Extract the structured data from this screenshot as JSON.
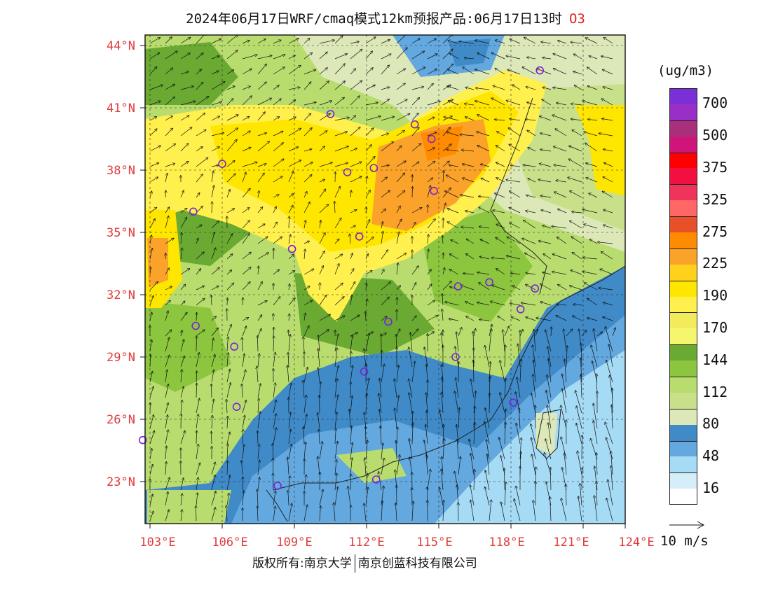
{
  "title": {
    "main": "2024年06月17日WRF/cmaq模式12km预报产品:06月17日13时",
    "pollutant": "O3"
  },
  "axes": {
    "lat_labels": [
      "44°N",
      "41°N",
      "38°N",
      "35°N",
      "32°N",
      "29°N",
      "26°N",
      "23°N"
    ],
    "lon_labels": [
      "103°E",
      "106°E",
      "109°E",
      "112°E",
      "115°E",
      "118°E",
      "121°E",
      "124°E"
    ],
    "label_color": "#e03c3c"
  },
  "legend": {
    "unit": "(ug/m3)",
    "items": [
      {
        "color": "#7b2fd6",
        "label": "700"
      },
      {
        "color": "#9a2fc8",
        "label": ""
      },
      {
        "color": "#a8307a",
        "label": "500"
      },
      {
        "color": "#d0157a",
        "label": ""
      },
      {
        "color": "#ff0000",
        "label": "375"
      },
      {
        "color": "#f21040",
        "label": ""
      },
      {
        "color": "#f0335a",
        "label": "325"
      },
      {
        "color": "#ff6666",
        "label": ""
      },
      {
        "color": "#e8502a",
        "label": "275"
      },
      {
        "color": "#ff8c00",
        "label": ""
      },
      {
        "color": "#fba22b",
        "label": "225"
      },
      {
        "color": "#ffd11a",
        "label": ""
      },
      {
        "color": "#ffe600",
        "label": "190"
      },
      {
        "color": "#fff04d",
        "label": ""
      },
      {
        "color": "#f2ec5c",
        "label": "170"
      },
      {
        "color": "#f5f56e",
        "label": ""
      },
      {
        "color": "#6aaa33",
        "label": "144"
      },
      {
        "color": "#8cc63f",
        "label": ""
      },
      {
        "color": "#b9dc6e",
        "label": "112"
      },
      {
        "color": "#c8e08a",
        "label": ""
      },
      {
        "color": "#dde8b8",
        "label": "80"
      },
      {
        "color": "#3f8ac7",
        "label": ""
      },
      {
        "color": "#63a8df",
        "label": "48"
      },
      {
        "color": "#a6dbf5",
        "label": ""
      },
      {
        "color": "#d6eefa",
        "label": "16"
      },
      {
        "color": "#ffffff",
        "label": ""
      }
    ]
  },
  "wind_vector_label": "10 m/s",
  "copyright": {
    "left": "版权所有:南京大学",
    "right": "南京创蓝科技有限公司"
  },
  "station_markers": [
    "42.8,119.2",
    "40.7,110.5",
    "40.2,114.0",
    "39.5,114.7",
    "38.3,106.0",
    "38.1,112.3",
    "37.9,111.2",
    "37.0,114.8",
    "36.0,104.8",
    "34.8,111.7",
    "34.2,108.9",
    "32.4,115.8",
    "32.6,117.1",
    "32.3,119.0",
    "31.3,118.4",
    "30.5,104.9",
    "30.7,112.9",
    "29.5,106.5",
    "29.0,115.7",
    "28.3,111.9",
    "26.8,118.1",
    "26.6,106.6",
    "25.0,102.7",
    "23.1,112.4",
    "22.8,108.3"
  ]
}
